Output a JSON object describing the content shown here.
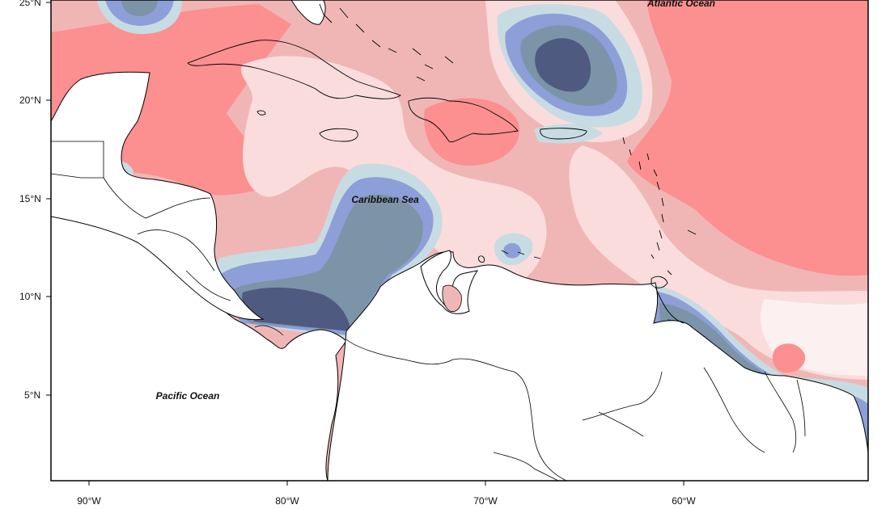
{
  "map": {
    "latitude_labels": [
      "25°N",
      "20°N",
      "15°N",
      "10°N",
      "5°N"
    ],
    "longitude_labels": [
      "90°W",
      "80°W",
      "70°W",
      "60°W"
    ],
    "place_labels": {
      "atlantic": "Atlantic Ocean",
      "caribbean": "Caribbean Sea",
      "pacific": "Pacific Ocean"
    },
    "colors": {
      "strong_positive": "#fc8f8f",
      "medium_positive": "#f0b6b6",
      "weak_positive": "#fadcdc",
      "near_zero": "#fdf0f0",
      "weak_negative": "#c6dce2",
      "medium_negative": "#8e9ed8",
      "strong_negative": "#7b94a8",
      "very_negative": "#4f5a80",
      "extreme_negative": "#3d3c7c",
      "land": "#ffffff",
      "coastline": "#000000"
    }
  }
}
